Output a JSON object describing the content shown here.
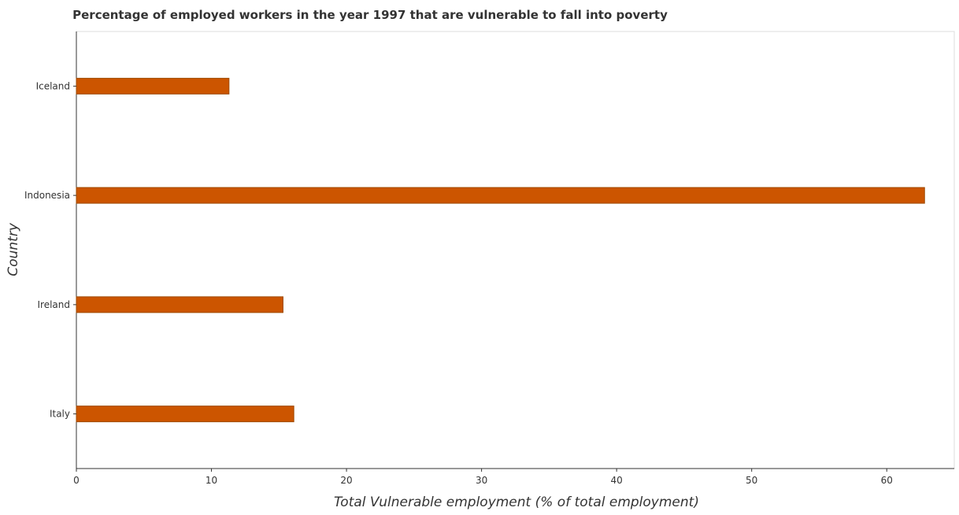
{
  "chart_data": {
    "type": "bar",
    "orientation": "horizontal",
    "title": "Percentage of employed workers in the year 1997 that are vulnerable to fall into poverty",
    "xlabel": "Total Vulnerable employment (% of total employment)",
    "ylabel": "Country",
    "categories": [
      "Iceland",
      "Indonesia",
      "Ireland",
      "Italy"
    ],
    "values": [
      11.3,
      62.8,
      15.3,
      16.1
    ],
    "xlim": [
      0,
      65
    ],
    "xticks": [
      0,
      10,
      20,
      30,
      40,
      50,
      60
    ],
    "grid": false,
    "legend": "none",
    "bar_color": "#cc5500",
    "bar_stroke": "#9e4a00"
  }
}
